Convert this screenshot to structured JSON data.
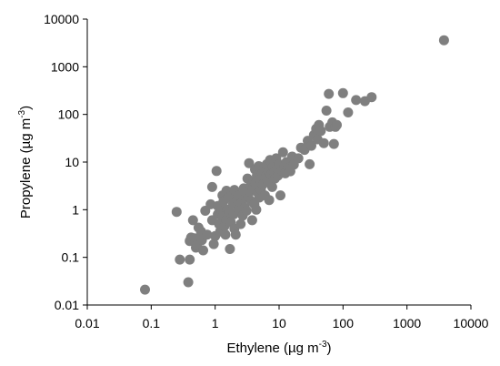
{
  "chart_data": {
    "type": "scatter",
    "title": "",
    "xlabel": "Ethylene (µg m",
    "ylabel": "Propylene (µg m",
    "label_superscript": "-3",
    "label_close": ")",
    "x_scale": "log",
    "y_scale": "log",
    "xlim": [
      0.01,
      10000
    ],
    "ylim": [
      0.01,
      10000
    ],
    "x_ticks": [
      0.01,
      0.1,
      1,
      10,
      100,
      1000,
      10000
    ],
    "x_tick_labels": [
      "0.01",
      "0.1",
      "1",
      "10",
      "100",
      "1000",
      "10000"
    ],
    "y_ticks": [
      0.01,
      0.1,
      1,
      10,
      100,
      1000,
      10000
    ],
    "y_tick_labels": [
      "0.01",
      "0.1",
      "1",
      "10",
      "100",
      "1000",
      "10000"
    ],
    "grid": false,
    "legend": "none",
    "marker_color": "#7f7f7f",
    "points": [
      [
        0.08,
        0.021
      ],
      [
        0.25,
        0.9
      ],
      [
        0.28,
        0.09
      ],
      [
        0.38,
        0.03
      ],
      [
        0.4,
        0.09
      ],
      [
        0.4,
        0.22
      ],
      [
        0.42,
        0.26
      ],
      [
        0.45,
        0.6
      ],
      [
        0.48,
        0.25
      ],
      [
        0.5,
        0.16
      ],
      [
        0.52,
        0.18
      ],
      [
        0.55,
        0.42
      ],
      [
        0.6,
        0.35
      ],
      [
        0.62,
        0.23
      ],
      [
        0.65,
        0.14
      ],
      [
        0.7,
        0.95
      ],
      [
        0.75,
        0.3
      ],
      [
        0.85,
        1.3
      ],
      [
        0.9,
        3.0
      ],
      [
        0.9,
        0.6
      ],
      [
        0.95,
        0.19
      ],
      [
        1.0,
        0.28
      ],
      [
        1.05,
        6.5
      ],
      [
        1.1,
        0.8
      ],
      [
        1.1,
        1.2
      ],
      [
        1.15,
        0.5
      ],
      [
        1.2,
        0.35
      ],
      [
        1.25,
        0.95
      ],
      [
        1.3,
        2.0
      ],
      [
        1.3,
        0.7
      ],
      [
        1.35,
        1.5
      ],
      [
        1.4,
        0.45
      ],
      [
        1.45,
        0.3
      ],
      [
        1.5,
        0.6
      ],
      [
        1.5,
        2.5
      ],
      [
        1.55,
        1.0
      ],
      [
        1.6,
        1.8
      ],
      [
        1.65,
        0.9
      ],
      [
        1.7,
        0.15
      ],
      [
        1.75,
        0.55
      ],
      [
        1.8,
        2.2
      ],
      [
        1.9,
        1.3
      ],
      [
        1.95,
        0.8
      ],
      [
        2.0,
        0.4
      ],
      [
        2.0,
        2.6
      ],
      [
        2.1,
        0.3
      ],
      [
        2.2,
        1.6
      ],
      [
        2.3,
        1.0
      ],
      [
        2.4,
        2.0
      ],
      [
        2.5,
        0.5
      ],
      [
        2.6,
        1.4
      ],
      [
        2.7,
        0.75
      ],
      [
        2.8,
        2.8
      ],
      [
        2.9,
        1.1
      ],
      [
        3.0,
        1.8
      ],
      [
        3.1,
        0.95
      ],
      [
        3.2,
        4.5
      ],
      [
        3.3,
        1.9
      ],
      [
        3.4,
        9.5
      ],
      [
        3.5,
        2.4
      ],
      [
        3.6,
        3.2
      ],
      [
        3.7,
        1.5
      ],
      [
        3.8,
        0.6
      ],
      [
        3.9,
        2.8
      ],
      [
        4.0,
        4.0
      ],
      [
        4.1,
        1.3
      ],
      [
        4.2,
        7.0
      ],
      [
        4.3,
        3.6
      ],
      [
        4.4,
        1.0
      ],
      [
        4.5,
        5.2
      ],
      [
        4.6,
        2.3
      ],
      [
        4.7,
        3.0
      ],
      [
        4.8,
        8.2
      ],
      [
        4.9,
        1.8
      ],
      [
        5.0,
        4.4
      ],
      [
        5.2,
        2.6
      ],
      [
        5.4,
        5.8
      ],
      [
        5.6,
        3.4
      ],
      [
        5.8,
        7.5
      ],
      [
        6.0,
        2.0
      ],
      [
        6.2,
        5.0
      ],
      [
        6.4,
        9.0
      ],
      [
        6.6,
        4.0
      ],
      [
        6.8,
        6.4
      ],
      [
        7.0,
        1.6
      ],
      [
        7.2,
        11
      ],
      [
        7.5,
        5.5
      ],
      [
        7.8,
        3.0
      ],
      [
        8.0,
        8.0
      ],
      [
        8.3,
        6.0
      ],
      [
        8.6,
        4.5
      ],
      [
        9.0,
        12
      ],
      [
        9.3,
        7.2
      ],
      [
        9.6,
        5.2
      ],
      [
        10,
        9.0
      ],
      [
        10.5,
        2.0
      ],
      [
        11,
        6.6
      ],
      [
        11.5,
        16
      ],
      [
        12,
        8.5
      ],
      [
        12.5,
        5.8
      ],
      [
        13,
        10
      ],
      [
        14,
        7.6
      ],
      [
        15,
        6.4
      ],
      [
        16,
        13
      ],
      [
        17,
        8.8
      ],
      [
        20,
        12
      ],
      [
        22,
        20
      ],
      [
        25,
        18
      ],
      [
        28,
        28
      ],
      [
        30,
        9.0
      ],
      [
        32,
        22
      ],
      [
        35,
        37
      ],
      [
        38,
        50
      ],
      [
        40,
        30
      ],
      [
        42,
        60
      ],
      [
        45,
        45
      ],
      [
        50,
        25
      ],
      [
        55,
        120
      ],
      [
        60,
        270
      ],
      [
        62,
        55
      ],
      [
        68,
        68
      ],
      [
        72,
        24
      ],
      [
        76,
        55
      ],
      [
        80,
        60
      ],
      [
        100,
        280
      ],
      [
        120,
        110
      ],
      [
        160,
        200
      ],
      [
        220,
        190
      ],
      [
        280,
        230
      ],
      [
        3800,
        3600
      ]
    ]
  }
}
